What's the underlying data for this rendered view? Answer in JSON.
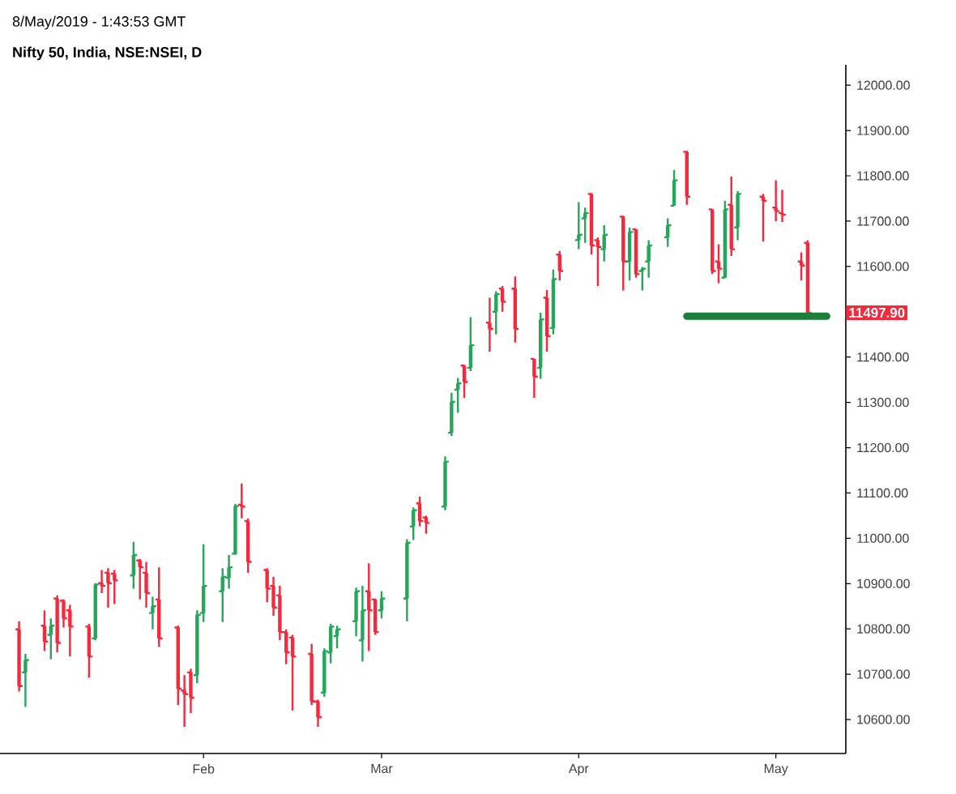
{
  "chart_data": {
    "type": "candlestick",
    "title": "Nifty 50, India, NSE:NSEI, D",
    "subtitle": "8/May/2019 - 1:43:53 GMT",
    "x": [
      "2019-01-03",
      "2019-01-04",
      "2019-01-07",
      "2019-01-08",
      "2019-01-09",
      "2019-01-10",
      "2019-01-11",
      "2019-01-14",
      "2019-01-15",
      "2019-01-16",
      "2019-01-17",
      "2019-01-18",
      "2019-01-21",
      "2019-01-22",
      "2019-01-23",
      "2019-01-24",
      "2019-01-25",
      "2019-01-28",
      "2019-01-29",
      "2019-01-30",
      "2019-01-31",
      "2019-02-01",
      "2019-02-04",
      "2019-02-05",
      "2019-02-06",
      "2019-02-07",
      "2019-02-08",
      "2019-02-11",
      "2019-02-12",
      "2019-02-13",
      "2019-02-14",
      "2019-02-15",
      "2019-02-18",
      "2019-02-19",
      "2019-02-20",
      "2019-02-21",
      "2019-02-22",
      "2019-02-25",
      "2019-02-26",
      "2019-02-27",
      "2019-02-28",
      "2019-03-01",
      "2019-03-05",
      "2019-03-06",
      "2019-03-07",
      "2019-03-08",
      "2019-03-11",
      "2019-03-12",
      "2019-03-13",
      "2019-03-14",
      "2019-03-15",
      "2019-03-18",
      "2019-03-19",
      "2019-03-20",
      "2019-03-22",
      "2019-03-25",
      "2019-03-26",
      "2019-03-27",
      "2019-03-28",
      "2019-03-29",
      "2019-04-01",
      "2019-04-02",
      "2019-04-03",
      "2019-04-04",
      "2019-04-05",
      "2019-04-08",
      "2019-04-09",
      "2019-04-10",
      "2019-04-11",
      "2019-04-12",
      "2019-04-15",
      "2019-04-16",
      "2019-04-18",
      "2019-04-22",
      "2019-04-23",
      "2019-04-24",
      "2019-04-25",
      "2019-04-26",
      "2019-04-30",
      "2019-05-02",
      "2019-05-03",
      "2019-05-06",
      "2019-05-07"
    ],
    "ohlc": [
      [
        10799,
        10817,
        10662,
        10674
      ],
      [
        10704,
        10745,
        10628,
        10731
      ],
      [
        10807,
        10841,
        10751,
        10772
      ],
      [
        10787,
        10823,
        10733,
        10807
      ],
      [
        10867,
        10874,
        10748,
        10769
      ],
      [
        10862,
        10865,
        10803,
        10823
      ],
      [
        10841,
        10853,
        10739,
        10805
      ],
      [
        10805,
        10811,
        10692,
        10739
      ],
      [
        10779,
        10901,
        10775,
        10898
      ],
      [
        10901,
        10930,
        10879,
        10895
      ],
      [
        10924,
        10934,
        10847,
        10901
      ],
      [
        10922,
        10930,
        10855,
        10907
      ],
      [
        10918,
        10992,
        10889,
        10963
      ],
      [
        10951,
        10954,
        10865,
        10936
      ],
      [
        10924,
        10948,
        10847,
        10879
      ],
      [
        10835,
        10871,
        10799,
        10850
      ],
      [
        10865,
        10936,
        10760,
        10779
      ],
      [
        10803,
        10807,
        10632,
        10668
      ],
      [
        10664,
        10698,
        10584,
        10656
      ],
      [
        10704,
        10712,
        10614,
        10648
      ],
      [
        10698,
        10841,
        10680,
        10831
      ],
      [
        10835,
        10987,
        10815,
        10895
      ],
      [
        10883,
        10934,
        10815,
        10915
      ],
      [
        10913,
        10963,
        10889,
        10936
      ],
      [
        10966,
        11076,
        10963,
        11071
      ],
      [
        11074,
        11121,
        11044,
        11070
      ],
      [
        11038,
        11044,
        10924,
        10948
      ],
      [
        10930,
        10934,
        10859,
        10889
      ],
      [
        10895,
        10915,
        10829,
        10847
      ],
      [
        10874,
        10895,
        10775,
        10793
      ],
      [
        10793,
        10799,
        10722,
        10748
      ],
      [
        10781,
        10787,
        10620,
        10739
      ],
      [
        10745,
        10767,
        10632,
        10640
      ],
      [
        10640,
        10644,
        10584,
        10605
      ],
      [
        10659,
        10757,
        10650,
        10751
      ],
      [
        10748,
        10811,
        10724,
        10805
      ],
      [
        10784,
        10807,
        10757,
        10799
      ],
      [
        10817,
        10891,
        10784,
        10883
      ],
      [
        10775,
        10895,
        10728,
        10841
      ],
      [
        10883,
        10945,
        10751,
        10841
      ],
      [
        10865,
        10867,
        10787,
        10793
      ],
      [
        10841,
        10883,
        10823,
        10867
      ],
      [
        10867,
        10998,
        10817,
        10990
      ],
      [
        11026,
        11068,
        10996,
        11062
      ],
      [
        11077,
        11092,
        11026,
        11038
      ],
      [
        11046,
        11050,
        11010,
        11034
      ],
      [
        11070,
        11181,
        11062,
        11169
      ],
      [
        11233,
        11321,
        11226,
        11301
      ],
      [
        11328,
        11354,
        11277,
        11342
      ],
      [
        11381,
        11383,
        11310,
        11345
      ],
      [
        11376,
        11488,
        11369,
        11426
      ],
      [
        11476,
        11531,
        11412,
        11462
      ],
      [
        11500,
        11545,
        11450,
        11539
      ],
      [
        11551,
        11557,
        11500,
        11522
      ],
      [
        11551,
        11578,
        11432,
        11462
      ],
      [
        11396,
        11396,
        11310,
        11357
      ],
      [
        11376,
        11498,
        11352,
        11483
      ],
      [
        11531,
        11548,
        11412,
        11446
      ],
      [
        11464,
        11593,
        11450,
        11572
      ],
      [
        11626,
        11634,
        11569,
        11590
      ],
      [
        11658,
        11742,
        11638,
        11670
      ],
      [
        11706,
        11730,
        11652,
        11718
      ],
      [
        11760,
        11762,
        11626,
        11646
      ],
      [
        11658,
        11664,
        11557,
        11643
      ],
      [
        11638,
        11691,
        11611,
        11670
      ],
      [
        11710,
        11712,
        11547,
        11611
      ],
      [
        11611,
        11686,
        11569,
        11676
      ],
      [
        11682,
        11682,
        11575,
        11583
      ],
      [
        11590,
        11599,
        11547,
        11595
      ],
      [
        11611,
        11658,
        11575,
        11646
      ],
      [
        11664,
        11706,
        11643,
        11691
      ],
      [
        11734,
        11813,
        11734,
        11790
      ],
      [
        11853,
        11855,
        11736,
        11754
      ],
      [
        11726,
        11726,
        11583,
        11590
      ],
      [
        11611,
        11649,
        11563,
        11595
      ],
      [
        11575,
        11745,
        11575,
        11726
      ],
      [
        11736,
        11798,
        11623,
        11638
      ],
      [
        11686,
        11766,
        11658,
        11760
      ],
      [
        11754,
        11760,
        11655,
        11745
      ],
      [
        11730,
        11790,
        11700,
        11722
      ],
      [
        11718,
        11769,
        11698,
        11714
      ],
      [
        11611,
        11631,
        11569,
        11602
      ],
      [
        11652,
        11658,
        11497.9,
        11497.9
      ]
    ],
    "series": [
      {
        "type": "line",
        "x": [
          "2019-04-18",
          "2019-05-10"
        ],
        "values": [
          11490,
          11490
        ],
        "color": "#1b7f3a"
      }
    ],
    "xlim": [
      "2018-12-31",
      "2019-05-13"
    ],
    "xticks": [
      {
        "value": "2019-02-01",
        "label": "Feb"
      },
      {
        "value": "2019-03-01",
        "label": "Mar"
      },
      {
        "value": "2019-04-01",
        "label": "Apr"
      },
      {
        "value": "2019-05-02",
        "label": "May"
      }
    ],
    "ylim": [
      10525,
      12045
    ],
    "yticks": [
      {
        "value": 10600,
        "label": "10600.00"
      },
      {
        "value": 10700,
        "label": "10700.00"
      },
      {
        "value": 10800,
        "label": "10800.00"
      },
      {
        "value": 10900,
        "label": "10900.00"
      },
      {
        "value": 11000,
        "label": "11000.00"
      },
      {
        "value": 11100,
        "label": "11100.00"
      },
      {
        "value": 11200,
        "label": "11200.00"
      },
      {
        "value": 11300,
        "label": "11300.00"
      },
      {
        "value": 11400,
        "label": "11400.00"
      },
      {
        "value": 11600,
        "label": "11600.00"
      },
      {
        "value": 11700,
        "label": "11700.00"
      },
      {
        "value": 11800,
        "label": "11800.00"
      },
      {
        "value": 11900,
        "label": "11900.00"
      },
      {
        "value": 12000,
        "label": "12000.00"
      }
    ],
    "annotations": [
      "11497.90"
    ],
    "grid": false
  }
}
